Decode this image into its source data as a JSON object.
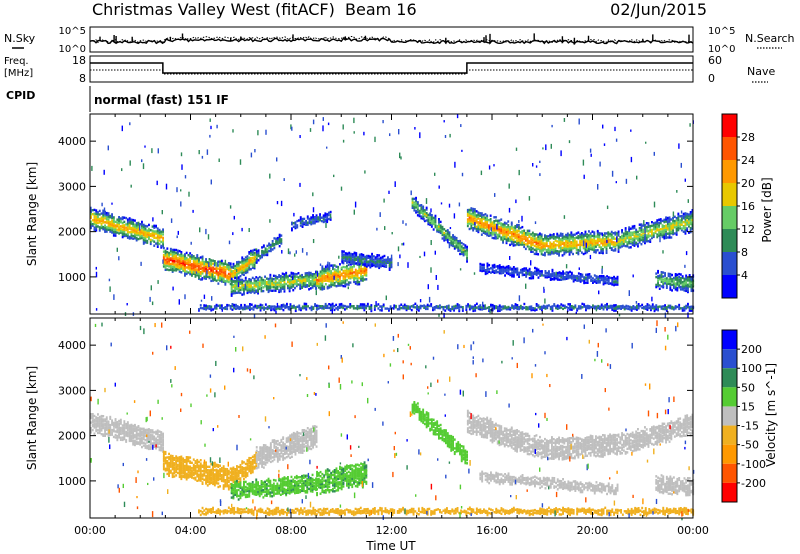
{
  "header": {
    "title": "Christmas Valley West (fitACF)",
    "beam": "Beam 16",
    "date": "02/Jun/2015"
  },
  "colors": {
    "power_scale": [
      "#0000ff",
      "#2a4fd0",
      "#2e8b57",
      "#66cc66",
      "#e8c800",
      "#ff9900",
      "#ff5500",
      "#ff0000"
    ],
    "velocity_scale": [
      "#ff0000",
      "#ff5500",
      "#ff9900",
      "#f0b020",
      "#bfbfbf",
      "#55cc33",
      "#2e8b57",
      "#2a4fd0",
      "#0000ff"
    ],
    "ground_scatter": "#bfbfbf"
  },
  "top_panels": {
    "nsky": {
      "label": "N.Sky",
      "left_ticks": [
        "10^5",
        "10^0"
      ],
      "right_label": "N.Search",
      "right_ticks": [
        "10^5",
        "10^0"
      ]
    },
    "freq": {
      "label": "Freq.",
      "unit": "[MHz]",
      "left_ticks": [
        "18",
        "8"
      ],
      "right_label": "Nave",
      "right_ticks": [
        "60",
        "0"
      ]
    },
    "cpid": {
      "label": "CPID",
      "text": "normal (fast) 151 IF"
    }
  },
  "x_axis": {
    "label": "Time UT",
    "ticks": [
      "00:00",
      "04:00",
      "08:00",
      "12:00",
      "16:00",
      "20:00",
      "00:00"
    ]
  },
  "chart_data": [
    {
      "type": "heatmap",
      "name": "power",
      "ylabel": "Slant Range [km]",
      "yticks": [
        1000,
        2000,
        3000,
        4000
      ],
      "ylim": [
        180,
        4600
      ],
      "xlim_hours": [
        0,
        24
      ],
      "colorbar": {
        "label": "Power [dB]",
        "ticks": [
          "4",
          "8",
          "12",
          "16",
          "20",
          "24",
          "28"
        ],
        "range": [
          0,
          32
        ]
      },
      "bands": [
        {
          "t0": 0.0,
          "t1": 2.9,
          "r0": 2300,
          "r1": 1850,
          "width": 450,
          "peak": 22
        },
        {
          "t0": 2.9,
          "t1": 5.6,
          "r0": 1400,
          "r1": 1050,
          "width": 500,
          "peak": 28
        },
        {
          "t0": 5.6,
          "t1": 6.6,
          "r0": 1050,
          "r1": 1450,
          "width": 420,
          "peak": 22
        },
        {
          "t0": 6.6,
          "t1": 7.6,
          "r0": 1450,
          "r1": 1850,
          "width": 260,
          "peak": 12
        },
        {
          "t0": 5.6,
          "t1": 9.0,
          "r0": 780,
          "r1": 950,
          "width": 380,
          "peak": 18
        },
        {
          "t0": 9.0,
          "t1": 11.0,
          "r0": 950,
          "r1": 1150,
          "width": 520,
          "peak": 24
        },
        {
          "t0": 8.0,
          "t1": 9.6,
          "r0": 2150,
          "r1": 2350,
          "width": 220,
          "peak": 9
        },
        {
          "t0": 10.0,
          "t1": 12.0,
          "r0": 1450,
          "r1": 1300,
          "width": 280,
          "peak": 10
        },
        {
          "t0": 12.8,
          "t1": 15.0,
          "r0": 2650,
          "r1": 1500,
          "width": 330,
          "peak": 15
        },
        {
          "t0": 15.0,
          "t1": 18.0,
          "r0": 2300,
          "r1": 1700,
          "width": 480,
          "peak": 25
        },
        {
          "t0": 18.0,
          "t1": 21.0,
          "r0": 1700,
          "r1": 1800,
          "width": 480,
          "peak": 22
        },
        {
          "t0": 21.0,
          "t1": 24.0,
          "r0": 1800,
          "r1": 2250,
          "width": 450,
          "peak": 18
        },
        {
          "t0": 15.5,
          "t1": 21.0,
          "r0": 1200,
          "r1": 900,
          "width": 220,
          "peak": 8
        },
        {
          "t0": 22.5,
          "t1": 24.0,
          "r0": 950,
          "r1": 850,
          "width": 380,
          "peak": 14
        },
        {
          "t0": 4.3,
          "t1": 24.0,
          "r0": 330,
          "r1": 330,
          "width": 130,
          "peak": 10
        }
      ]
    },
    {
      "type": "heatmap",
      "name": "velocity",
      "ylabel": "Slant Range [km]",
      "yticks": [
        1000,
        2000,
        3000,
        4000
      ],
      "ylim": [
        180,
        4600
      ],
      "xlim_hours": [
        0,
        24
      ],
      "colorbar": {
        "label": "Velocity [m s^-1]",
        "ticks": [
          "200",
          "100",
          "50",
          "15",
          "-15",
          "-50",
          "-100",
          "-200"
        ]
      },
      "bands": [
        {
          "t0": 0.0,
          "t1": 2.9,
          "r0": 2300,
          "r1": 1850,
          "width": 450,
          "v": 0
        },
        {
          "t0": 2.9,
          "t1": 5.6,
          "r0": 1400,
          "r1": 1050,
          "width": 500,
          "v": -30
        },
        {
          "t0": 5.6,
          "t1": 6.6,
          "r0": 1050,
          "r1": 1450,
          "width": 420,
          "v": -30
        },
        {
          "t0": 6.6,
          "t1": 9.0,
          "r0": 1500,
          "r1": 2000,
          "width": 500,
          "v": 0
        },
        {
          "t0": 5.6,
          "t1": 9.0,
          "r0": 780,
          "r1": 950,
          "width": 380,
          "v": 40
        },
        {
          "t0": 9.0,
          "t1": 11.0,
          "r0": 950,
          "r1": 1150,
          "width": 520,
          "v": 40
        },
        {
          "t0": 12.8,
          "t1": 15.0,
          "r0": 2650,
          "r1": 1500,
          "width": 330,
          "v": 30
        },
        {
          "t0": 15.0,
          "t1": 18.0,
          "r0": 2300,
          "r1": 1700,
          "width": 480,
          "v": 0
        },
        {
          "t0": 18.0,
          "t1": 21.0,
          "r0": 1700,
          "r1": 1800,
          "width": 480,
          "v": 0
        },
        {
          "t0": 21.0,
          "t1": 24.0,
          "r0": 1800,
          "r1": 2250,
          "width": 450,
          "v": 0
        },
        {
          "t0": 15.5,
          "t1": 21.0,
          "r0": 1100,
          "r1": 800,
          "width": 220,
          "v": 0
        },
        {
          "t0": 22.5,
          "t1": 24.0,
          "r0": 950,
          "r1": 850,
          "width": 380,
          "v": 0
        },
        {
          "t0": 4.3,
          "t1": 24.0,
          "r0": 330,
          "r1": 330,
          "width": 130,
          "v": -30
        }
      ]
    }
  ]
}
